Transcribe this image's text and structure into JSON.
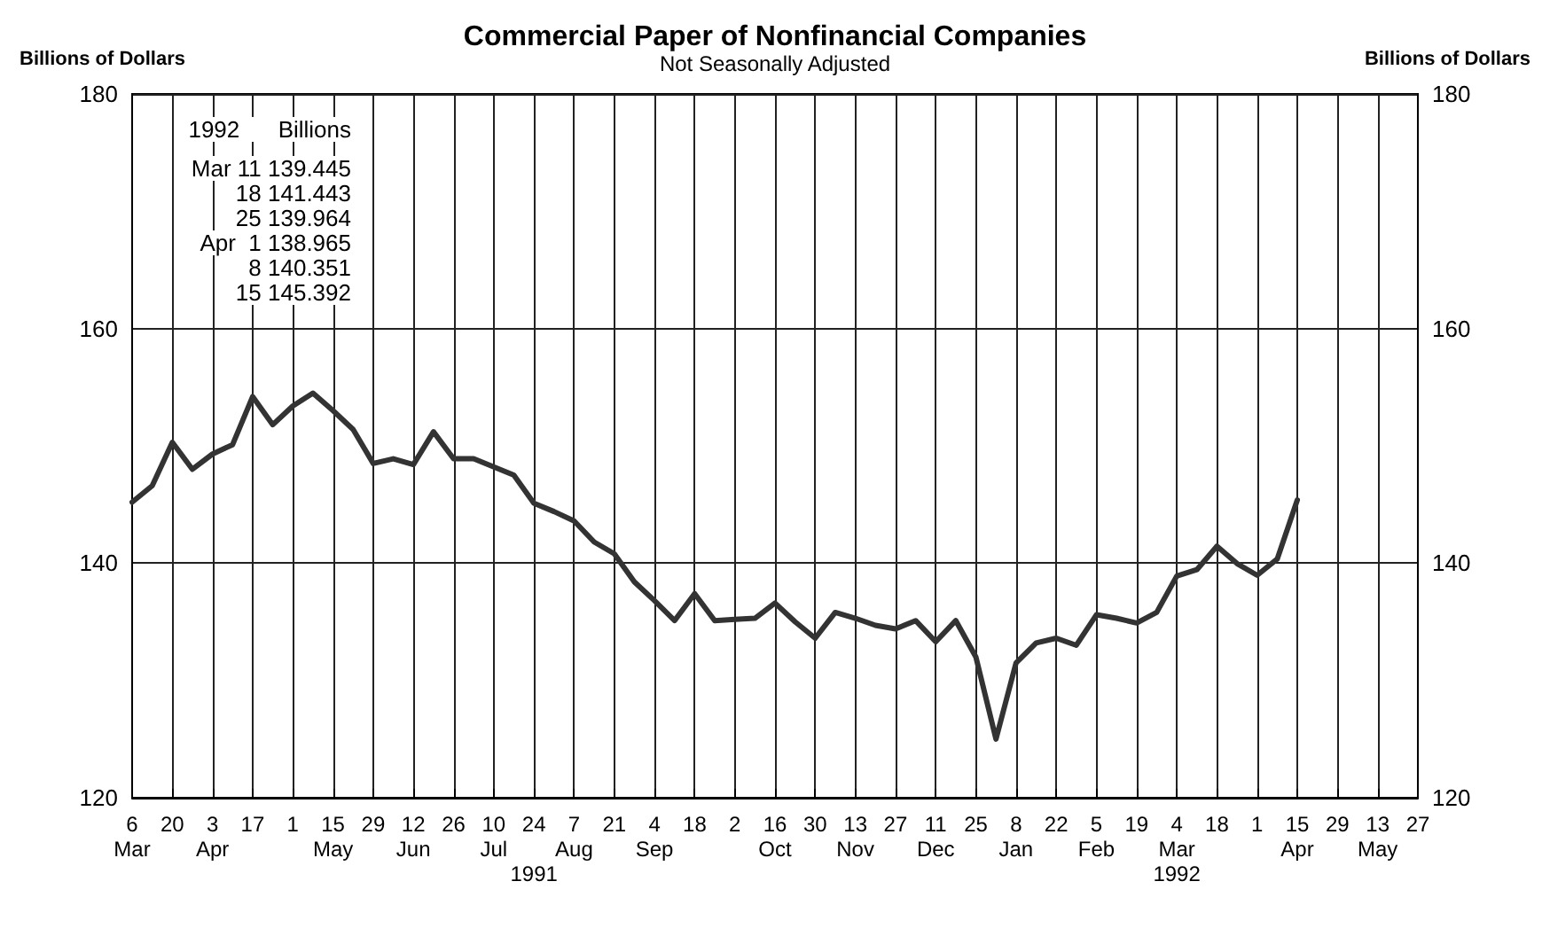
{
  "chart_data": {
    "type": "line",
    "title": "Commercial Paper of Nonfinancial Companies",
    "subtitle": "Not Seasonally Adjusted",
    "ylabel": "Billions of Dollars",
    "y2label": "Billions of Dollars",
    "annotations": [
      "1992      Billions",
      "Mar 11 139.445",
      "18 141.443",
      "25 139.964",
      "Apr  1 138.965",
      "8 140.351",
      "15 145.392"
    ],
    "x": [
      "1991-03-06",
      "1991-03-13",
      "1991-03-20",
      "1991-03-27",
      "1991-04-03",
      "1991-04-10",
      "1991-04-17",
      "1991-04-24",
      "1991-05-01",
      "1991-05-08",
      "1991-05-15",
      "1991-05-22",
      "1991-05-29",
      "1991-06-05",
      "1991-06-12",
      "1991-06-19",
      "1991-06-26",
      "1991-07-03",
      "1991-07-10",
      "1991-07-17",
      "1991-07-24",
      "1991-07-31",
      "1991-08-07",
      "1991-08-14",
      "1991-08-21",
      "1991-08-28",
      "1991-09-04",
      "1991-09-11",
      "1991-09-18",
      "1991-09-25",
      "1991-10-02",
      "1991-10-09",
      "1991-10-16",
      "1991-10-23",
      "1991-10-30",
      "1991-11-06",
      "1991-11-13",
      "1991-11-20",
      "1991-11-27",
      "1991-12-04",
      "1991-12-11",
      "1991-12-18",
      "1991-12-25",
      "1992-01-01",
      "1992-01-08",
      "1992-01-15",
      "1992-01-22",
      "1992-01-29",
      "1992-02-05",
      "1992-02-12",
      "1992-02-19",
      "1992-02-26",
      "1992-03-04",
      "1992-03-11",
      "1992-03-18",
      "1992-03-25",
      "1992-04-01",
      "1992-04-08",
      "1992-04-15"
    ],
    "series": [
      {
        "color": "#333333",
        "values": [
          145.2,
          146.6,
          150.3,
          148.0,
          149.3,
          150.1,
          154.2,
          151.8,
          153.4,
          154.5,
          153.0,
          151.4,
          148.5,
          148.9,
          148.4,
          151.2,
          148.9,
          148.9,
          148.2,
          147.5,
          145.1,
          144.4,
          143.6,
          141.8,
          140.8,
          138.4,
          136.8,
          135.1,
          137.4,
          135.1,
          135.2,
          135.3,
          136.6,
          135.0,
          133.6,
          135.8,
          135.3,
          134.7,
          134.4,
          135.1,
          133.3,
          135.1,
          132.0,
          125.0,
          131.5,
          133.2,
          133.6,
          133.0,
          135.6,
          135.3,
          134.9,
          135.8,
          138.9,
          139.445,
          141.443,
          139.964,
          138.965,
          140.351,
          145.392
        ]
      }
    ],
    "xlim": [
      "1991-03-06",
      "1992-05-27"
    ],
    "xticks": [
      {
        "value": "1991-03-06",
        "label": "6\nMar"
      },
      {
        "value": "1991-03-20",
        "label": "20"
      },
      {
        "value": "1991-04-03",
        "label": "3\nApr"
      },
      {
        "value": "1991-04-17",
        "label": "17"
      },
      {
        "value": "1991-05-01",
        "label": "1"
      },
      {
        "value": "1991-05-15",
        "label": "15\nMay"
      },
      {
        "value": "1991-05-29",
        "label": "29"
      },
      {
        "value": "1991-06-12",
        "label": "12\nJun"
      },
      {
        "value": "1991-06-26",
        "label": "26"
      },
      {
        "value": "1991-07-10",
        "label": "10\nJul"
      },
      {
        "value": "1991-07-24",
        "label": "24\n\n1991"
      },
      {
        "value": "1991-08-07",
        "label": "7\nAug"
      },
      {
        "value": "1991-08-21",
        "label": "21"
      },
      {
        "value": "1991-09-04",
        "label": "4\nSep"
      },
      {
        "value": "1991-09-18",
        "label": "18"
      },
      {
        "value": "1991-10-02",
        "label": "2"
      },
      {
        "value": "1991-10-16",
        "label": "16\nOct"
      },
      {
        "value": "1991-10-30",
        "label": "30"
      },
      {
        "value": "1991-11-13",
        "label": "13\nNov"
      },
      {
        "value": "1991-11-27",
        "label": "27"
      },
      {
        "value": "1991-12-11",
        "label": "11\nDec"
      },
      {
        "value": "1991-12-25",
        "label": "25"
      },
      {
        "value": "1992-01-08",
        "label": "8\nJan"
      },
      {
        "value": "1992-01-22",
        "label": "22"
      },
      {
        "value": "1992-02-05",
        "label": "5\nFeb"
      },
      {
        "value": "1992-02-19",
        "label": "19"
      },
      {
        "value": "1992-03-04",
        "label": "4\nMar\n1992"
      },
      {
        "value": "1992-03-18",
        "label": "18"
      },
      {
        "value": "1992-04-01",
        "label": "1"
      },
      {
        "value": "1992-04-15",
        "label": "15\nApr"
      },
      {
        "value": "1992-04-29",
        "label": "29"
      },
      {
        "value": "1992-05-13",
        "label": "13\nMay"
      },
      {
        "value": "1992-05-27",
        "label": "27"
      }
    ],
    "ylim": [
      120,
      180
    ],
    "yticks": [
      120,
      140,
      160,
      180
    ],
    "y2lim": [
      120,
      180
    ],
    "y2ticks": [
      120,
      140,
      160,
      180
    ],
    "grid": true,
    "marker": "none",
    "line_style": "solid"
  }
}
